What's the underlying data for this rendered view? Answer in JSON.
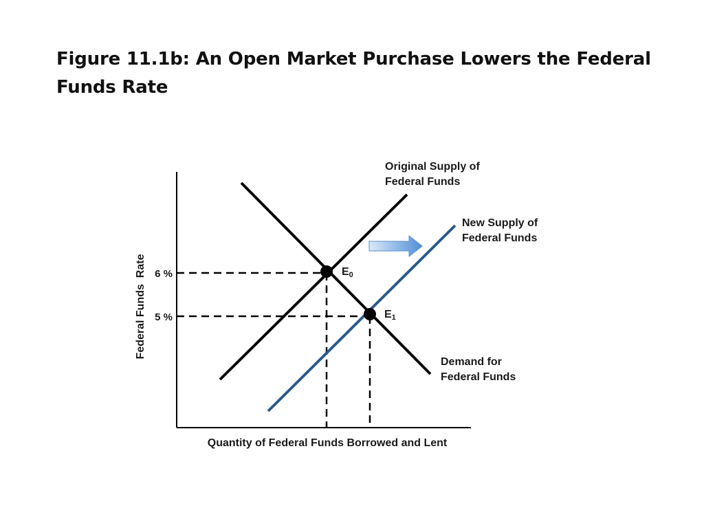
{
  "slide": {
    "title": "Figure 11.1b: An Open Market Purchase Lowers the Federal Funds Rate"
  },
  "chart_data": {
    "type": "line",
    "title": "Figure 11.1b: An Open Market Purchase Lowers the Federal Funds Rate",
    "xlabel": "Quantity of Federal Funds Borrowed and Lent",
    "ylabel": "Federal Funds  Rate",
    "y_ticks": [
      {
        "value": 6,
        "label": "6 %"
      },
      {
        "value": 5,
        "label": "5 %"
      }
    ],
    "series": [
      {
        "name": "Original Supply of Federal Funds",
        "color": "#000000"
      },
      {
        "name": "New Supply of Federal Funds",
        "color": "#2a5a8c"
      },
      {
        "name": "Demand for Federal Funds",
        "color": "#000000"
      }
    ],
    "points": [
      {
        "label": "E",
        "sub": "0",
        "y": 6
      },
      {
        "label": "E",
        "sub": "1",
        "y": 5
      }
    ],
    "shift_arrow": {
      "direction": "right",
      "color": "#4f8fd6"
    },
    "grid": false,
    "legend": "none"
  }
}
